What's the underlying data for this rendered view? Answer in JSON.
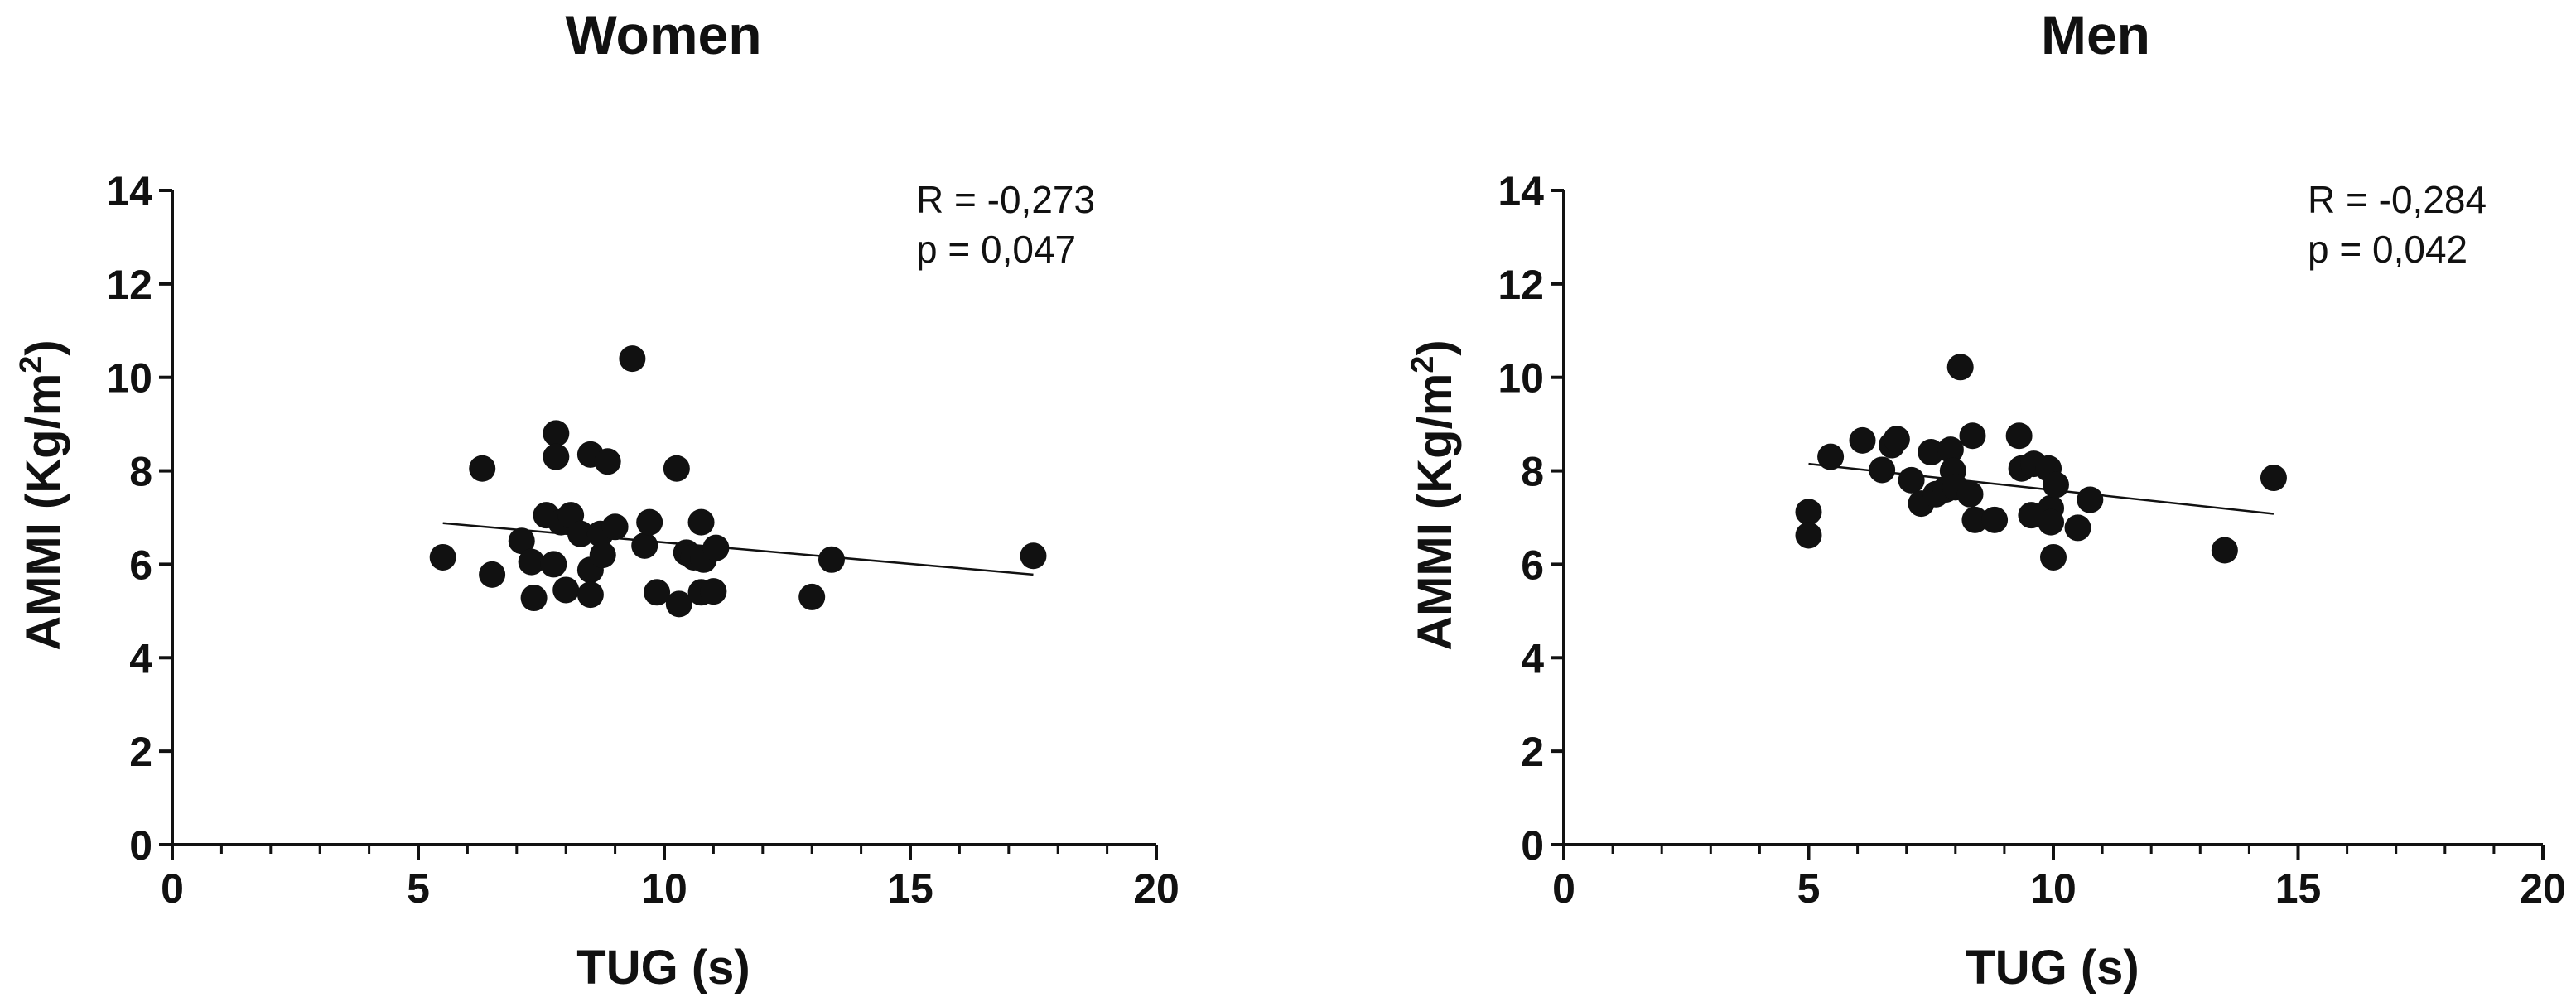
{
  "chart_data": [
    {
      "type": "scatter",
      "title": "Women",
      "xlabel": "TUG (s)",
      "ylabel_main": "AMMI (Kg/m",
      "ylabel_sup": "2",
      "ylabel_close": ")",
      "xlim": [
        0,
        20
      ],
      "ylim": [
        0,
        14
      ],
      "x_ticks": [
        "0",
        "5",
        "10",
        "15",
        "20"
      ],
      "y_ticks": [
        "0",
        "2",
        "4",
        "6",
        "8",
        "10",
        "12",
        "14"
      ],
      "annotations": [
        "R = -0,273",
        "p = 0,047"
      ],
      "trendline": {
        "x": [
          5.5,
          17.5
        ],
        "y": [
          6.88,
          5.78
        ]
      },
      "points": [
        {
          "x": 5.5,
          "y": 6.15
        },
        {
          "x": 6.3,
          "y": 8.05
        },
        {
          "x": 6.5,
          "y": 5.78
        },
        {
          "x": 7.1,
          "y": 6.5
        },
        {
          "x": 7.3,
          "y": 6.05
        },
        {
          "x": 7.35,
          "y": 5.28
        },
        {
          "x": 7.6,
          "y": 7.05
        },
        {
          "x": 7.75,
          "y": 6.0
        },
        {
          "x": 7.8,
          "y": 8.8
        },
        {
          "x": 7.8,
          "y": 8.3
        },
        {
          "x": 7.9,
          "y": 6.9
        },
        {
          "x": 8.0,
          "y": 5.45
        },
        {
          "x": 8.1,
          "y": 7.05
        },
        {
          "x": 8.3,
          "y": 6.65
        },
        {
          "x": 8.5,
          "y": 8.35
        },
        {
          "x": 8.5,
          "y": 5.88
        },
        {
          "x": 8.5,
          "y": 5.35
        },
        {
          "x": 8.7,
          "y": 6.65
        },
        {
          "x": 8.75,
          "y": 6.2
        },
        {
          "x": 8.85,
          "y": 8.2
        },
        {
          "x": 9.0,
          "y": 6.8
        },
        {
          "x": 9.35,
          "y": 10.4
        },
        {
          "x": 9.6,
          "y": 6.4
        },
        {
          "x": 9.7,
          "y": 6.9
        },
        {
          "x": 9.85,
          "y": 5.4
        },
        {
          "x": 10.25,
          "y": 8.05
        },
        {
          "x": 10.3,
          "y": 5.15
        },
        {
          "x": 10.45,
          "y": 6.25
        },
        {
          "x": 10.6,
          "y": 6.15
        },
        {
          "x": 10.75,
          "y": 5.4
        },
        {
          "x": 10.75,
          "y": 6.9
        },
        {
          "x": 10.8,
          "y": 6.1
        },
        {
          "x": 11.0,
          "y": 5.42
        },
        {
          "x": 11.05,
          "y": 6.35
        },
        {
          "x": 13.0,
          "y": 5.3
        },
        {
          "x": 13.4,
          "y": 6.1
        },
        {
          "x": 17.5,
          "y": 6.18
        }
      ]
    },
    {
      "type": "scatter",
      "title": "Men",
      "xlabel": "TUG (s)",
      "ylabel_main": "AMMI (Kg/m",
      "ylabel_sup": "2",
      "ylabel_close": ")",
      "xlim": [
        0,
        20
      ],
      "ylim": [
        0,
        14
      ],
      "x_ticks": [
        "0",
        "5",
        "10",
        "15",
        "20"
      ],
      "y_ticks": [
        "0",
        "2",
        "4",
        "6",
        "8",
        "10",
        "12",
        "14"
      ],
      "annotations": [
        "R = -0,284",
        "p = 0,042"
      ],
      "trendline": {
        "x": [
          5.0,
          14.5
        ],
        "y": [
          8.15,
          7.08
        ]
      },
      "points": [
        {
          "x": 5.0,
          "y": 7.12
        },
        {
          "x": 5.0,
          "y": 6.62
        },
        {
          "x": 5.45,
          "y": 8.3
        },
        {
          "x": 6.1,
          "y": 8.65
        },
        {
          "x": 6.5,
          "y": 8.02
        },
        {
          "x": 6.7,
          "y": 8.55
        },
        {
          "x": 6.8,
          "y": 8.68
        },
        {
          "x": 7.1,
          "y": 7.8
        },
        {
          "x": 7.3,
          "y": 7.3
        },
        {
          "x": 7.5,
          "y": 8.4
        },
        {
          "x": 7.6,
          "y": 7.5
        },
        {
          "x": 7.8,
          "y": 7.6
        },
        {
          "x": 7.9,
          "y": 8.45
        },
        {
          "x": 7.95,
          "y": 8.0
        },
        {
          "x": 8.0,
          "y": 7.65
        },
        {
          "x": 8.1,
          "y": 10.22
        },
        {
          "x": 8.3,
          "y": 7.5
        },
        {
          "x": 8.35,
          "y": 8.75
        },
        {
          "x": 8.4,
          "y": 6.95
        },
        {
          "x": 8.8,
          "y": 6.95
        },
        {
          "x": 9.3,
          "y": 8.75
        },
        {
          "x": 9.35,
          "y": 8.05
        },
        {
          "x": 9.55,
          "y": 7.05
        },
        {
          "x": 9.6,
          "y": 8.15
        },
        {
          "x": 9.9,
          "y": 8.05
        },
        {
          "x": 9.95,
          "y": 7.2
        },
        {
          "x": 9.95,
          "y": 6.9
        },
        {
          "x": 10.0,
          "y": 6.15
        },
        {
          "x": 10.05,
          "y": 7.7
        },
        {
          "x": 10.5,
          "y": 6.78
        },
        {
          "x": 10.75,
          "y": 7.38
        },
        {
          "x": 13.5,
          "y": 6.3
        },
        {
          "x": 14.5,
          "y": 7.85
        }
      ]
    }
  ]
}
